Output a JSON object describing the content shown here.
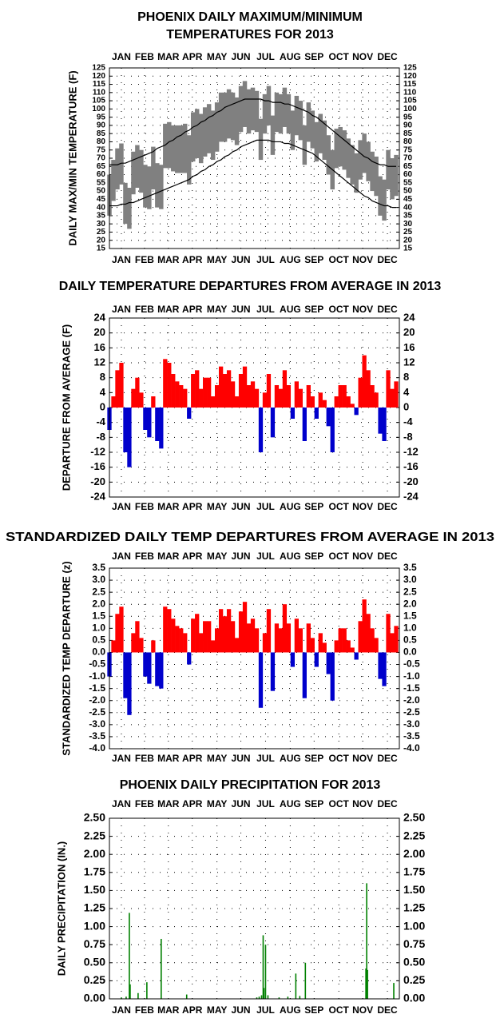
{
  "chart_data": [
    {
      "type": "range",
      "title": [
        "PHOENIX DAILY MAXIMUM/MINIMUM",
        "TEMPERATURES FOR 2013"
      ],
      "y_label": "DAILY MAX/MIN TEMPERATURE (F)",
      "xlim": [
        1,
        365
      ],
      "xticks": [
        {
          "value": 16,
          "label": "JAN"
        },
        {
          "value": 45,
          "label": "FEB"
        },
        {
          "value": 75,
          "label": "MAR"
        },
        {
          "value": 105,
          "label": "APR"
        },
        {
          "value": 136,
          "label": "MAY"
        },
        {
          "value": 166,
          "label": "JUN"
        },
        {
          "value": 197,
          "label": "JUL"
        },
        {
          "value": 228,
          "label": "AUG"
        },
        {
          "value": 258,
          "label": "SEP"
        },
        {
          "value": 289,
          "label": "OCT"
        },
        {
          "value": 319,
          "label": "NOV"
        },
        {
          "value": 350,
          "label": "DEC"
        }
      ],
      "ylim": [
        15,
        125
      ],
      "yticks": [
        15,
        20,
        25,
        30,
        35,
        40,
        45,
        50,
        55,
        60,
        65,
        70,
        75,
        80,
        85,
        90,
        95,
        100,
        105,
        110,
        115,
        120,
        125
      ],
      "grid": true,
      "band_color": "#808080",
      "line_color": "#000000",
      "x": [
        1,
        6,
        11,
        16,
        21,
        26,
        31,
        36,
        41,
        46,
        51,
        56,
        61,
        66,
        71,
        76,
        81,
        86,
        91,
        96,
        101,
        106,
        111,
        116,
        121,
        126,
        131,
        136,
        141,
        146,
        151,
        156,
        161,
        166,
        171,
        176,
        181,
        186,
        191,
        196,
        201,
        206,
        211,
        216,
        221,
        226,
        231,
        236,
        241,
        246,
        251,
        256,
        261,
        266,
        271,
        276,
        281,
        286,
        291,
        296,
        301,
        306,
        311,
        316,
        321,
        326,
        331,
        336,
        341,
        346,
        351,
        356,
        361
      ],
      "max": [
        60,
        69,
        76,
        79,
        55,
        52,
        74,
        78,
        75,
        66,
        65,
        77,
        67,
        66,
        91,
        92,
        90,
        90,
        90,
        91,
        84,
        98,
        100,
        97,
        101,
        103,
        99,
        104,
        110,
        110,
        112,
        110,
        107,
        114,
        117,
        112,
        113,
        111,
        94,
        109,
        114,
        96,
        110,
        109,
        113,
        109,
        99,
        108,
        105,
        90,
        104,
        99,
        92,
        97,
        93,
        84,
        75,
        88,
        89,
        87,
        82,
        78,
        73,
        81,
        85,
        80,
        74,
        71,
        59,
        57,
        75,
        70,
        72
      ],
      "min": [
        35,
        44,
        51,
        54,
        30,
        27,
        48,
        52,
        49,
        40,
        39,
        51,
        40,
        39,
        64,
        64,
        62,
        61,
        61,
        61,
        54,
        68,
        70,
        67,
        71,
        73,
        69,
        74,
        80,
        80,
        82,
        81,
        78,
        86,
        89,
        85,
        87,
        86,
        69,
        85,
        90,
        72,
        86,
        85,
        89,
        85,
        75,
        84,
        81,
        66,
        80,
        76,
        68,
        73,
        69,
        60,
        51,
        64,
        65,
        63,
        58,
        54,
        49,
        57,
        61,
        56,
        50,
        47,
        35,
        32,
        51,
        45,
        47
      ],
      "normal_max": [
        66,
        66,
        66,
        67,
        67,
        68,
        69,
        70,
        71,
        72,
        73,
        74,
        76,
        77,
        78,
        80,
        81,
        83,
        84,
        86,
        87,
        89,
        90,
        92,
        93,
        95,
        96,
        98,
        99,
        101,
        102,
        103,
        104,
        105,
        106,
        106,
        106,
        106,
        106,
        105,
        105,
        104,
        104,
        104,
        103,
        103,
        102,
        101,
        100,
        99,
        98,
        96,
        95,
        93,
        91,
        89,
        87,
        85,
        83,
        81,
        79,
        77,
        75,
        73,
        71,
        70,
        68,
        67,
        66,
        66,
        65,
        65,
        65
      ],
      "normal_min": [
        41,
        41,
        41,
        42,
        42,
        43,
        43,
        44,
        45,
        46,
        47,
        48,
        49,
        50,
        51,
        52,
        53,
        54,
        55,
        56,
        57,
        59,
        60,
        62,
        63,
        65,
        66,
        68,
        69,
        71,
        72,
        74,
        75,
        77,
        78,
        79,
        80,
        81,
        81,
        81,
        81,
        80,
        80,
        80,
        79,
        79,
        78,
        77,
        76,
        75,
        74,
        73,
        71,
        69,
        67,
        65,
        63,
        61,
        59,
        57,
        55,
        53,
        51,
        49,
        47,
        46,
        44,
        43,
        42,
        41,
        41,
        40,
        40
      ]
    },
    {
      "type": "departure",
      "title": "DAILY TEMPERATURE DEPARTURES FROM AVERAGE IN 2013",
      "y_label": "DEPARTURE FROM AVERAGE (F)",
      "xlim": [
        1,
        365
      ],
      "xticks": [
        {
          "value": 16,
          "label": "JAN"
        },
        {
          "value": 45,
          "label": "FEB"
        },
        {
          "value": 75,
          "label": "MAR"
        },
        {
          "value": 105,
          "label": "APR"
        },
        {
          "value": 136,
          "label": "MAY"
        },
        {
          "value": 166,
          "label": "JUN"
        },
        {
          "value": 197,
          "label": "JUL"
        },
        {
          "value": 228,
          "label": "AUG"
        },
        {
          "value": 258,
          "label": "SEP"
        },
        {
          "value": 289,
          "label": "OCT"
        },
        {
          "value": 319,
          "label": "NOV"
        },
        {
          "value": 350,
          "label": "DEC"
        }
      ],
      "ylim": [
        -24,
        24
      ],
      "yticks": [
        -24,
        -20,
        -16,
        -12,
        -8,
        -4,
        0,
        4,
        8,
        12,
        16,
        20,
        24
      ],
      "grid": true,
      "pos_color": "#ff0000",
      "neg_color": "#0000cc",
      "x": [
        1,
        6,
        11,
        16,
        21,
        26,
        31,
        36,
        41,
        46,
        51,
        56,
        61,
        66,
        71,
        76,
        81,
        86,
        91,
        96,
        101,
        106,
        111,
        116,
        121,
        126,
        131,
        136,
        141,
        146,
        151,
        156,
        161,
        166,
        171,
        176,
        181,
        186,
        191,
        196,
        201,
        206,
        211,
        216,
        221,
        226,
        231,
        236,
        241,
        246,
        251,
        256,
        261,
        266,
        271,
        276,
        281,
        286,
        291,
        296,
        301,
        306,
        311,
        316,
        321,
        326,
        331,
        336,
        341,
        346,
        351,
        356,
        361
      ],
      "values": [
        -6,
        3,
        10,
        12,
        -12,
        -16,
        5,
        8,
        4,
        -6,
        -8,
        3,
        -9,
        -11,
        13,
        12,
        9,
        7,
        6,
        5,
        -3,
        9,
        10,
        5,
        8,
        8,
        3,
        6,
        11,
        9,
        10,
        7,
        3,
        9,
        11,
        6,
        7,
        5,
        -12,
        4,
        9,
        -8,
        6,
        5,
        10,
        6,
        -3,
        7,
        5,
        -9,
        6,
        3,
        -3,
        4,
        2,
        -5,
        -12,
        3,
        6,
        6,
        3,
        1,
        -2,
        8,
        14,
        10,
        6,
        4,
        -7,
        -9,
        10,
        5,
        7
      ]
    },
    {
      "type": "departure",
      "title": "STANDARDIZED DAILY TEMP DEPARTURES FROM AVERAGE IN 2013",
      "y_label": "STANDARDIZED TEMP DEPARTURE (z)",
      "xlim": [
        1,
        365
      ],
      "xticks": [
        {
          "value": 16,
          "label": "JAN"
        },
        {
          "value": 45,
          "label": "FEB"
        },
        {
          "value": 75,
          "label": "MAR"
        },
        {
          "value": 105,
          "label": "APR"
        },
        {
          "value": 136,
          "label": "MAY"
        },
        {
          "value": 166,
          "label": "JUN"
        },
        {
          "value": 197,
          "label": "JUL"
        },
        {
          "value": 228,
          "label": "AUG"
        },
        {
          "value": 258,
          "label": "SEP"
        },
        {
          "value": 289,
          "label": "OCT"
        },
        {
          "value": 319,
          "label": "NOV"
        },
        {
          "value": 350,
          "label": "DEC"
        }
      ],
      "ylim": [
        -4,
        3.5
      ],
      "yticks": [
        {
          "value": -4,
          "label": "-4.0"
        },
        -3.5,
        {
          "value": -3,
          "label": "-3.0"
        },
        -2.5,
        {
          "value": -2,
          "label": "-2.0"
        },
        -1.5,
        {
          "value": -1,
          "label": "-1.0"
        },
        -0.5,
        {
          "value": 0,
          "label": "0.0"
        },
        0.5,
        {
          "value": 1,
          "label": "1.0"
        },
        1.5,
        {
          "value": 2,
          "label": "2.0"
        },
        2.5,
        {
          "value": 3,
          "label": "3.0"
        },
        3.5
      ],
      "grid": true,
      "pos_color": "#ff0000",
      "neg_color": "#0000cc",
      "x": [
        1,
        6,
        11,
        16,
        21,
        26,
        31,
        36,
        41,
        46,
        51,
        56,
        61,
        66,
        71,
        76,
        81,
        86,
        91,
        96,
        101,
        106,
        111,
        116,
        121,
        126,
        131,
        136,
        141,
        146,
        151,
        156,
        161,
        166,
        171,
        176,
        181,
        186,
        191,
        196,
        201,
        206,
        211,
        216,
        221,
        226,
        231,
        236,
        241,
        246,
        251,
        256,
        261,
        266,
        271,
        276,
        281,
        286,
        291,
        296,
        301,
        306,
        311,
        316,
        321,
        326,
        331,
        336,
        341,
        346,
        351,
        356,
        361
      ],
      "values": [
        -1.0,
        0.5,
        1.6,
        1.9,
        -1.9,
        -2.6,
        0.8,
        1.3,
        0.6,
        -1.0,
        -1.3,
        0.5,
        -1.4,
        -1.5,
        1.9,
        1.8,
        1.4,
        1.1,
        1.0,
        0.8,
        -0.5,
        1.4,
        1.6,
        0.8,
        1.3,
        1.3,
        0.5,
        1.0,
        1.8,
        1.5,
        1.8,
        1.3,
        0.6,
        1.7,
        2.1,
        1.2,
        1.4,
        1.0,
        -2.3,
        0.8,
        1.8,
        -1.6,
        1.2,
        1.0,
        2.0,
        1.2,
        -0.6,
        1.4,
        1.0,
        -1.9,
        1.2,
        0.6,
        -0.6,
        0.8,
        0.4,
        -0.9,
        -2.0,
        0.5,
        1.0,
        1.0,
        0.5,
        0.2,
        -0.3,
        1.3,
        2.2,
        1.6,
        1.0,
        0.6,
        -1.1,
        -1.4,
        1.6,
        0.8,
        1.1
      ]
    },
    {
      "type": "bar",
      "title": "PHOENIX DAILY PRECIPITATION FOR 2013",
      "y_label": "DAILY PRECIPITATION (IN.)",
      "xlim": [
        1,
        365
      ],
      "xticks": [
        {
          "value": 16,
          "label": "JAN"
        },
        {
          "value": 45,
          "label": "FEB"
        },
        {
          "value": 75,
          "label": "MAR"
        },
        {
          "value": 105,
          "label": "APR"
        },
        {
          "value": 136,
          "label": "MAY"
        },
        {
          "value": 166,
          "label": "JUN"
        },
        {
          "value": 197,
          "label": "JUL"
        },
        {
          "value": 228,
          "label": "AUG"
        },
        {
          "value": 258,
          "label": "SEP"
        },
        {
          "value": 289,
          "label": "OCT"
        },
        {
          "value": 319,
          "label": "NOV"
        },
        {
          "value": 350,
          "label": "DEC"
        }
      ],
      "ylim": [
        0,
        2.5
      ],
      "yticks": [
        {
          "value": 0,
          "label": "0.00"
        },
        0.25,
        {
          "value": 0.5,
          "label": "0.50"
        },
        0.75,
        {
          "value": 1,
          "label": "1.00"
        },
        1.25,
        {
          "value": 1.5,
          "label": "1.50"
        },
        1.75,
        {
          "value": 2,
          "label": "2.00"
        },
        2.25,
        {
          "value": 2.5,
          "label": "2.50"
        }
      ],
      "grid": true,
      "color": "#008000",
      "x": [
        16,
        22,
        26,
        27,
        37,
        48,
        66,
        98,
        186,
        189,
        192,
        194,
        195,
        197,
        200,
        214,
        225,
        235,
        240,
        247,
        323,
        324,
        325,
        358
      ],
      "values": [
        0.02,
        0.03,
        1.19,
        0.2,
        0.08,
        0.23,
        0.83,
        0.06,
        0.02,
        0.03,
        0.05,
        0.88,
        0.15,
        0.75,
        0.05,
        0.02,
        0.03,
        0.35,
        0.04,
        0.5,
        0.42,
        1.6,
        0.4,
        0.22
      ]
    }
  ]
}
